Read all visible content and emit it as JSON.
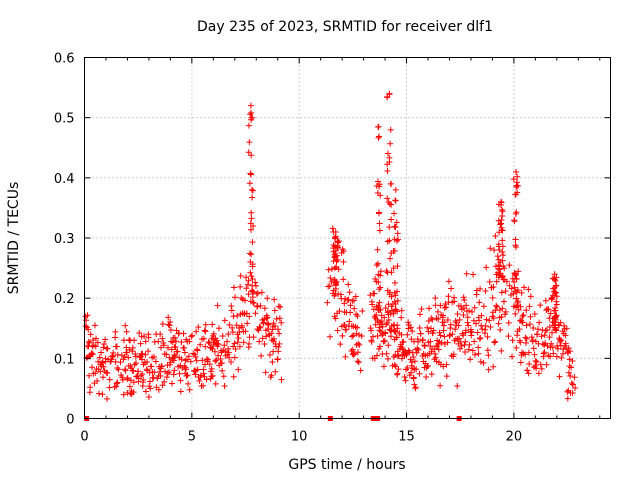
{
  "chart_data": {
    "type": "scatter",
    "title": "Day 235 of 2023, SRMTID for receiver dlf1",
    "xlabel": "GPS time / hours",
    "ylabel": "SRMTID / TECUs",
    "xlim": [
      0,
      24.5
    ],
    "ylim": [
      0,
      0.6
    ],
    "xticks": [
      "0",
      "5",
      "10",
      "15",
      "20"
    ],
    "xtick_values": [
      0,
      5,
      10,
      15,
      20
    ],
    "yticks": [
      "0",
      "0.1",
      "0.2",
      "0.3",
      "0.4",
      "0.5",
      "0.6"
    ],
    "ytick_values": [
      0,
      0.1,
      0.2,
      0.3,
      0.4,
      0.5,
      0.6
    ],
    "grid": true,
    "marker": "+",
    "color": "#ff0000",
    "envelope": [
      [
        0.05,
        0.14
      ],
      [
        0.3,
        0.1
      ],
      [
        0.6,
        0.09
      ],
      [
        1.0,
        0.08
      ],
      [
        1.5,
        0.09
      ],
      [
        2.0,
        0.1
      ],
      [
        2.5,
        0.08
      ],
      [
        3.0,
        0.09
      ],
      [
        3.5,
        0.1
      ],
      [
        4.0,
        0.11
      ],
      [
        4.5,
        0.1
      ],
      [
        5.0,
        0.09
      ],
      [
        5.5,
        0.1
      ],
      [
        6.0,
        0.11
      ],
      [
        6.5,
        0.12
      ],
      [
        7.0,
        0.14
      ],
      [
        7.3,
        0.17
      ],
      [
        7.6,
        0.2
      ],
      [
        7.8,
        0.19
      ],
      [
        8.1,
        0.16
      ],
      [
        8.5,
        0.15
      ],
      [
        8.8,
        0.14
      ],
      [
        9.1,
        0.12
      ],
      [
        11.5,
        0.2
      ],
      [
        11.9,
        0.22
      ],
      [
        12.2,
        0.17
      ],
      [
        12.6,
        0.13
      ],
      [
        12.9,
        0.12
      ],
      [
        13.4,
        0.15
      ],
      [
        13.8,
        0.15
      ],
      [
        14.2,
        0.16
      ],
      [
        14.6,
        0.12
      ],
      [
        15.0,
        0.11
      ],
      [
        15.5,
        0.12
      ],
      [
        16.0,
        0.13
      ],
      [
        16.5,
        0.14
      ],
      [
        17.0,
        0.15
      ],
      [
        17.5,
        0.15
      ],
      [
        18.0,
        0.15
      ],
      [
        18.5,
        0.16
      ],
      [
        19.0,
        0.19
      ],
      [
        19.3,
        0.22
      ],
      [
        19.6,
        0.2
      ],
      [
        20.0,
        0.19
      ],
      [
        20.4,
        0.16
      ],
      [
        20.8,
        0.14
      ],
      [
        21.2,
        0.12
      ],
      [
        21.6,
        0.14
      ],
      [
        22.0,
        0.15
      ],
      [
        22.4,
        0.11
      ],
      [
        22.8,
        0.06
      ]
    ],
    "spikes": [
      {
        "x": 7.75,
        "ymax": 0.52
      },
      {
        "x": 11.7,
        "ymax": 0.31
      },
      {
        "x": 13.7,
        "ymax": 0.485
      },
      {
        "x": 14.2,
        "ymax": 0.54
      },
      {
        "x": 14.5,
        "ymax": 0.38
      },
      {
        "x": 19.4,
        "ymax": 0.36
      },
      {
        "x": 20.1,
        "ymax": 0.41
      },
      {
        "x": 21.9,
        "ymax": 0.24
      }
    ],
    "gaps": [
      [
        9.2,
        11.3
      ],
      [
        12.95,
        13.3
      ]
    ],
    "zero_markers": [
      0.1,
      11.45,
      13.45,
      13.65,
      17.45
    ]
  }
}
